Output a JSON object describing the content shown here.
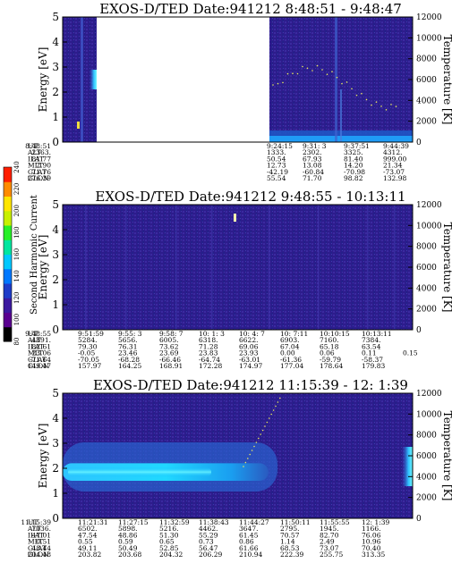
{
  "colors": {
    "background_fill": "#2e1a8a",
    "low_fill": "#2a2690",
    "mid_fill": "#1e49b6",
    "high_fill": "#00c8ff",
    "peak_fill": "#7ffaff",
    "colorbar": [
      "#000000",
      "#5a0090",
      "#3c1aa0",
      "#1e3cc8",
      "#0078ff",
      "#00c8ff",
      "#00e6a0",
      "#28f028",
      "#c8f000",
      "#ffe600",
      "#ff8c00",
      "#ff1e00"
    ]
  },
  "colorbar": {
    "label": "Second Harmonic Current",
    "ticks": [
      "80",
      "100",
      "120",
      "140",
      "160",
      "180",
      "200",
      "220",
      "240"
    ]
  },
  "chart_data": [
    {
      "type": "heatmap",
      "title": "EXOS-D/TED   Date:941212  8:48:51 - 9:48:47",
      "ylabel": "Energy [eV]",
      "ylabel_right": "Temperature [K]",
      "ylim": [
        0,
        5
      ],
      "y_ticks": [
        "0",
        "1",
        "2",
        "3",
        "4",
        "5"
      ],
      "y_right_lim": [
        0,
        12000
      ],
      "y_right_ticks": [
        "0",
        "2000",
        "4000",
        "6000",
        "8000",
        "10000",
        "12000"
      ],
      "data_gap": [
        "8:55:00",
        "9:24:15"
      ],
      "row_labels": [
        "UT",
        "ALT",
        "ILAT",
        "MLT",
        "GLAT",
        "GLON"
      ],
      "columns": [
        [
          "8:48:51",
          "2363.",
          "81.77",
          "2.90",
          "71.76",
          "276.39"
        ],
        [
          "9:24:15",
          "1333.",
          "50.54",
          "12.73",
          "-42.19",
          "55.54"
        ],
        [
          "9:31: 3",
          "2302.",
          "67.93",
          "13.08",
          "-60.84",
          "71.70"
        ],
        [
          "9:37:51",
          "3325.",
          "81.40",
          "14.20",
          "-70.98",
          "98.82"
        ],
        [
          "9:44:39",
          "4312.",
          "999.00",
          "21.34",
          "-73.07",
          "132.98"
        ]
      ]
    },
    {
      "type": "heatmap",
      "title": "EXOS-D/TED   Date:941212  9:48:55 - 10:13:11",
      "ylabel": "Energy [eV]",
      "ylabel_right": "Temperature [K]",
      "ylim": [
        0,
        5
      ],
      "y_ticks": [
        "0",
        "1",
        "2",
        "3",
        "4",
        "5"
      ],
      "y_right_lim": [
        0,
        12000
      ],
      "y_right_ticks": [
        "0",
        "2000",
        "4000",
        "6000",
        "8000",
        "10000",
        "12000"
      ],
      "row_labels": [
        "UT",
        "ALT",
        "ILAT",
        "MLT",
        "GLAT",
        "GLON"
      ],
      "columns": [
        [
          "9:48:55",
          "4891.",
          "82.61",
          "23.06",
          "-71.64",
          "149.47"
        ],
        [
          "9:51:59",
          "5284.",
          "79.30",
          "-0.05",
          "-70.05",
          "157.97"
        ],
        [
          "9:55: 3",
          "5656.",
          "76.31",
          "23.46",
          "-68.28",
          "164.25"
        ],
        [
          "9:58: 7",
          "6005.",
          "73.62",
          "23.69",
          "-66.46",
          "168.91"
        ],
        [
          "10: 1: 3",
          "6318.",
          "71.28",
          "23.83",
          "-64.74",
          "172.28"
        ],
        [
          "10: 4: 7",
          "6622.",
          "69.06",
          "23.93",
          "-63.01",
          "174.97"
        ],
        [
          "10: 7:11",
          "6903.",
          "67.04",
          "0.00",
          "-61.36",
          "177.04"
        ],
        [
          "10:10:15",
          "7160.",
          "65.18",
          "0.06",
          "-59.79",
          "178.64"
        ],
        [
          "10:13:11",
          "7384.",
          "63.54",
          "0.11",
          "-58.37",
          "179.83"
        ]
      ],
      "extra_row_values": [
        "0.15"
      ]
    },
    {
      "type": "heatmap",
      "title": "EXOS-D/TED   Date:941212  11:15:39 - 12: 1:39",
      "ylabel": "Energy [eV]",
      "ylabel_right": "Temperature [K]",
      "ylim": [
        0,
        5
      ],
      "y_ticks": [
        "0",
        "1",
        "2",
        "3",
        "4",
        "5"
      ],
      "y_right_lim": [
        0,
        12000
      ],
      "y_right_ticks": [
        "0",
        "2000",
        "4000",
        "6000",
        "8000",
        "10000",
        "12000"
      ],
      "band": {
        "energy_low": 1.5,
        "energy_high": 2.2,
        "until": "11:44:27"
      },
      "row_labels": [
        "UT",
        "ALT",
        "ILAT",
        "MLT",
        "GLAT",
        "GLON"
      ],
      "columns": [
        [
          "11:15:39",
          "7036.",
          "47.01",
          "0.51",
          "48.44",
          "204.48"
        ],
        [
          "11:21:31",
          "6502.",
          "47.54",
          "0.55",
          "49.11",
          "203.82"
        ],
        [
          "11:27:15",
          "5898.",
          "48.86",
          "0.59",
          "50.49",
          "203.68"
        ],
        [
          "11:32:59",
          "5216.",
          "51.30",
          "0.65",
          "52.85",
          "204.32"
        ],
        [
          "11:38:43",
          "4462.",
          "55.29",
          "0.73",
          "56.47",
          "206.29"
        ],
        [
          "11:44:27",
          "3647.",
          "61.45",
          "0.86",
          "61.66",
          "210.94"
        ],
        [
          "11:50:11",
          "2795.",
          "70.57",
          "1.14",
          "68.53",
          "222.39"
        ],
        [
          "11:55:55",
          "1945.",
          "82.70",
          "2.49",
          "73.07",
          "255.75"
        ],
        [
          "12: 1:39",
          "1166.",
          "76.06",
          "10.96",
          "70.40",
          "313.35"
        ]
      ]
    }
  ]
}
